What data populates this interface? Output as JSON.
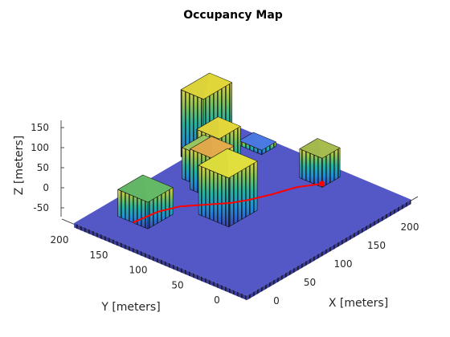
{
  "chart_data": {
    "type": "3d-occupancy-map",
    "title": "Occupancy Map",
    "xlabel": "X [meters]",
    "ylabel": "Y [meters]",
    "zlabel": "Z [meters]",
    "xlim": [
      -10,
      230
    ],
    "ylim": [
      -10,
      230
    ],
    "zlim": [
      -50,
      170
    ],
    "x_ticks": [
      "0",
      "50",
      "100",
      "150",
      "200"
    ],
    "y_ticks": [
      "0",
      "50",
      "100",
      "150",
      "200"
    ],
    "z_ticks": [
      "150",
      "100",
      "50",
      "0",
      "-50"
    ],
    "ground": {
      "z": 0,
      "color": "#5457c6"
    },
    "buildings": [
      {
        "name": "building-tall-back",
        "x": [
          150,
          190
        ],
        "y": [
          200,
          230
        ],
        "height": 150,
        "top_color": "#dcd23a"
      },
      {
        "name": "building-small-back",
        "x": [
          200,
          220
        ],
        "y": [
          170,
          200
        ],
        "height": 10,
        "top_color": "#4a78e0"
      },
      {
        "name": "building-mid-green",
        "x": [
          120,
          150
        ],
        "y": [
          170,
          200
        ],
        "height": 70,
        "top_color": "#98c460"
      },
      {
        "name": "building-orange",
        "x": [
          110,
          140
        ],
        "y": [
          150,
          180
        ],
        "height": 90,
        "top_color": "#dfa84a"
      },
      {
        "name": "building-mid-yellow",
        "x": [
          135,
          165
        ],
        "y": [
          165,
          195
        ],
        "height": 100,
        "top_color": "#ddd23a"
      },
      {
        "name": "building-left-green",
        "x": [
          30,
          65
        ],
        "y": [
          160,
          200
        ],
        "height": 60,
        "top_color": "#62b665"
      },
      {
        "name": "building-right-olive",
        "x": [
          190,
          215
        ],
        "y": [
          80,
          110
        ],
        "height": 65,
        "top_color": "#a3b94d"
      },
      {
        "name": "building-center-yellow",
        "x": [
          80,
          120
        ],
        "y": [
          100,
          140
        ],
        "height": 110,
        "top_color": "#dcdb3c"
      },
      {
        "name": "building-small-front",
        "x": [
          110,
          135
        ],
        "y": [
          120,
          135
        ],
        "height": 25,
        "top_color": "#3f8ee0"
      }
    ],
    "path": {
      "color": "#ff0000",
      "points": [
        [
          30,
          180,
          0
        ],
        [
          60,
          175,
          0
        ],
        [
          80,
          165,
          0
        ],
        [
          100,
          145,
          0
        ],
        [
          115,
          130,
          0
        ],
        [
          130,
          120,
          0
        ],
        [
          150,
          110,
          0
        ],
        [
          175,
          100,
          0
        ],
        [
          195,
          85,
          0
        ]
      ],
      "end_marker": [
        195,
        85,
        0
      ]
    }
  }
}
